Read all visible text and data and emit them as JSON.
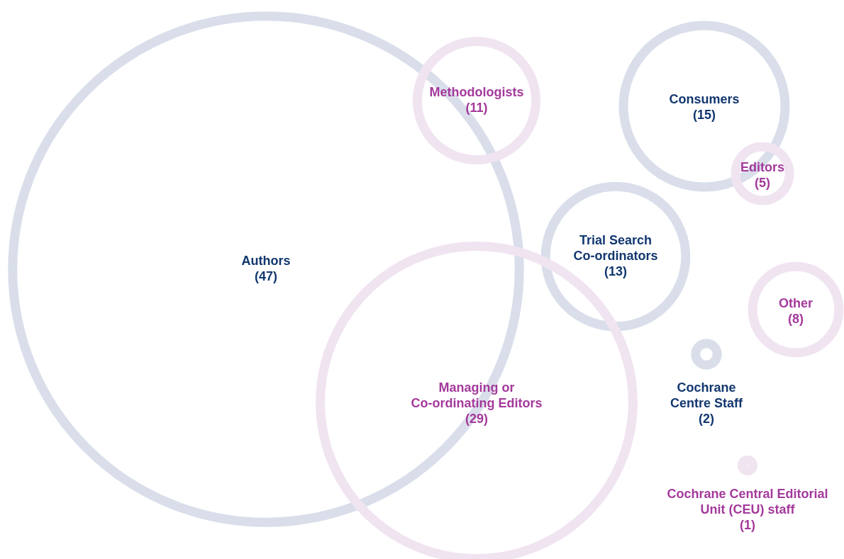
{
  "chart_data": {
    "type": "other",
    "categories": [
      "Authors",
      "Methodologists",
      "Consumers",
      "Editors",
      "Trial Search Co-ordinators",
      "Other",
      "Managing or Co-ordinating Editors",
      "Cochrane Centre Staff",
      "Cochrane Central Editorial Unit (CEU) staff"
    ],
    "values": [
      47,
      11,
      15,
      5,
      13,
      8,
      29,
      2,
      1
    ],
    "value_labels": [
      "(47)",
      "(11)",
      "(15)",
      "(5)",
      "(13)",
      "(8)",
      "(29)",
      "(2)",
      "(1)"
    ],
    "colors": [
      "#d9deea",
      "#f0e4f1",
      "#d9deea",
      "#f0e4f1",
      "#d9deea",
      "#f0e4f1",
      "#f0e4f1",
      "#d9deea",
      "#f0e4f1"
    ]
  }
}
